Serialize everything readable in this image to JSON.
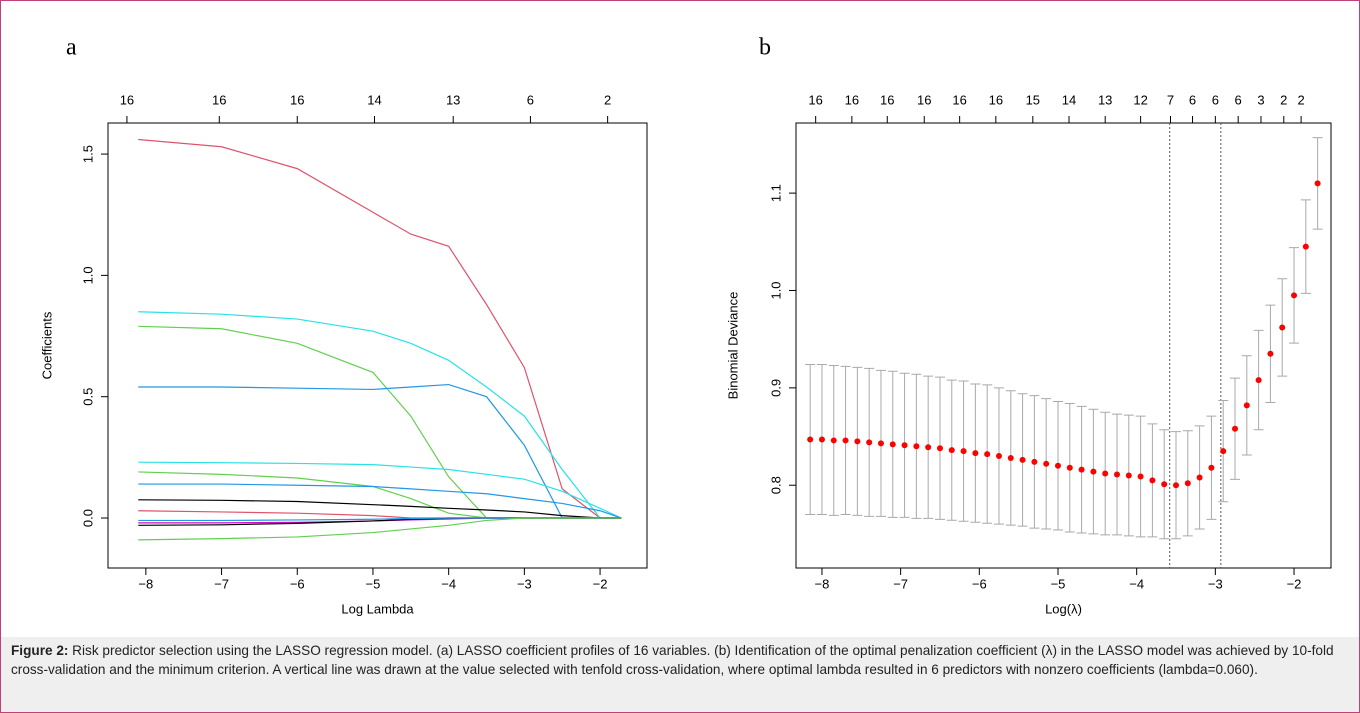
{
  "chart_data": [
    {
      "type": "line",
      "panel_label": "a",
      "x_label": "Log Lambda",
      "y_label": "Coefficients",
      "xlim": [
        -8.5,
        -1.38
      ],
      "ylim": [
        -0.206,
        1.628
      ],
      "xticks": [
        {
          "value": -8,
          "label": "−8"
        },
        {
          "value": -7,
          "label": "−7"
        },
        {
          "value": -6,
          "label": "−6"
        },
        {
          "value": -5,
          "label": "−5"
        },
        {
          "value": -4,
          "label": "−4"
        },
        {
          "value": -3,
          "label": "−3"
        },
        {
          "value": -2,
          "label": "−2"
        }
      ],
      "yticks": [
        {
          "value": 0,
          "label": "0.0"
        },
        0.5,
        {
          "value": 1,
          "label": "1.0"
        },
        1.5
      ],
      "top_ticks": [
        {
          "value": -8.25,
          "label": "16"
        },
        {
          "value": -7.03,
          "label": "16"
        },
        {
          "value": -6.0,
          "label": "16"
        },
        {
          "value": -4.98,
          "label": "14"
        },
        {
          "value": -3.94,
          "label": "13"
        },
        {
          "value": -2.92,
          "label": "6"
        },
        {
          "value": -1.9,
          "label": "2"
        }
      ],
      "x": [
        -8.1,
        -7,
        -6,
        -5,
        -4.5,
        -4,
        -3.5,
        -3,
        -2.5,
        -2,
        -1.72
      ],
      "series": [
        {
          "color": "#DF536B",
          "values": [
            1.56,
            1.53,
            1.44,
            1.26,
            1.17,
            1.12,
            0.88,
            0.62,
            0.12,
            0,
            0
          ]
        },
        {
          "color": "#28E2E5",
          "values": [
            0.85,
            0.84,
            0.82,
            0.77,
            0.72,
            0.65,
            0.54,
            0.42,
            0.2,
            0,
            0
          ]
        },
        {
          "color": "#61D04F",
          "values": [
            0.79,
            0.78,
            0.72,
            0.6,
            0.42,
            0.17,
            0,
            0,
            0,
            0,
            0
          ]
        },
        {
          "color": "#2297E6",
          "values": [
            0.54,
            0.54,
            0.535,
            0.53,
            0.54,
            0.55,
            0.5,
            0.3,
            0,
            0,
            0
          ]
        },
        {
          "color": "#28E2E5",
          "values": [
            0.23,
            0.228,
            0.225,
            0.22,
            0.21,
            0.2,
            0.18,
            0.16,
            0.11,
            0.04,
            0
          ]
        },
        {
          "color": "#61D04F",
          "values": [
            0.19,
            0.18,
            0.165,
            0.13,
            0.08,
            0.02,
            0,
            0,
            0,
            0,
            0
          ]
        },
        {
          "color": "#2297E6",
          "values": [
            0.14,
            0.14,
            0.135,
            0.13,
            0.12,
            0.11,
            0.1,
            0.08,
            0.06,
            0.03,
            0
          ]
        },
        {
          "color": "#000000",
          "values": [
            0.075,
            0.073,
            0.068,
            0.055,
            0.048,
            0.04,
            0.033,
            0.025,
            0.01,
            0,
            0
          ]
        },
        {
          "color": "#DF536B",
          "values": [
            0.03,
            0.025,
            0.02,
            0.01,
            0,
            0,
            0,
            0,
            0,
            0,
            0
          ]
        },
        {
          "color": "#CD0BBC",
          "values": [
            -0.02,
            -0.02,
            -0.018,
            -0.012,
            -0.008,
            -0.004,
            0,
            0,
            0,
            0,
            0
          ]
        },
        {
          "color": "#000000",
          "values": [
            -0.03,
            -0.028,
            -0.022,
            -0.012,
            -0.005,
            0,
            0,
            0,
            0,
            0,
            0
          ]
        },
        {
          "color": "#2297E6",
          "values": [
            -0.01,
            -0.01,
            -0.008,
            -0.005,
            -0.002,
            0,
            0,
            0,
            0,
            0,
            0
          ]
        },
        {
          "color": "#61D04F",
          "values": [
            -0.09,
            -0.085,
            -0.078,
            -0.06,
            -0.045,
            -0.03,
            -0.01,
            0,
            0,
            0,
            0
          ]
        }
      ]
    },
    {
      "type": "errorbar",
      "panel_label": "b",
      "x_label": "Log(λ)",
      "y_label": "Binomial Deviance",
      "xlim": [
        -8.33,
        -1.53
      ],
      "ylim": [
        0.715,
        1.172
      ],
      "xticks": [
        {
          "value": -8,
          "label": "−8"
        },
        {
          "value": -7,
          "label": "−7"
        },
        {
          "value": -6,
          "label": "−6"
        },
        {
          "value": -5,
          "label": "−5"
        },
        {
          "value": -4,
          "label": "−4"
        },
        {
          "value": -3,
          "label": "−3"
        },
        {
          "value": -2,
          "label": "−2"
        }
      ],
      "yticks": [
        0.8,
        0.9,
        {
          "value": 1,
          "label": "1.0"
        },
        1.1
      ],
      "top_ticks": [
        {
          "value": -8.08,
          "label": "16"
        },
        {
          "value": -7.62,
          "label": "16"
        },
        {
          "value": -7.17,
          "label": "16"
        },
        {
          "value": -6.7,
          "label": "16"
        },
        {
          "value": -6.25,
          "label": "16"
        },
        {
          "value": -5.79,
          "label": "16"
        },
        {
          "value": -5.32,
          "label": "15"
        },
        {
          "value": -4.86,
          "label": "14"
        },
        {
          "value": -4.4,
          "label": "13"
        },
        {
          "value": -3.95,
          "label": "12"
        },
        {
          "value": -3.57,
          "label": "7"
        },
        {
          "value": -3.29,
          "label": "6"
        },
        {
          "value": -3.0,
          "label": "6"
        },
        {
          "value": -2.71,
          "label": "6"
        },
        {
          "value": -2.42,
          "label": "3"
        },
        {
          "value": -2.13,
          "label": "2"
        },
        {
          "value": -1.91,
          "label": "2"
        }
      ],
      "vlines": [
        -3.58,
        -2.93
      ],
      "color": "#FF0000",
      "error_color": "#A9A9A9",
      "x": [
        -8.15,
        -8.0,
        -7.85,
        -7.7,
        -7.55,
        -7.4,
        -7.25,
        -7.1,
        -6.95,
        -6.8,
        -6.65,
        -6.5,
        -6.35,
        -6.2,
        -6.05,
        -5.9,
        -5.75,
        -5.6,
        -5.45,
        -5.3,
        -5.15,
        -5.0,
        -4.85,
        -4.7,
        -4.55,
        -4.4,
        -4.25,
        -4.1,
        -3.95,
        -3.8,
        -3.65,
        -3.5,
        -3.35,
        -3.2,
        -3.05,
        -2.9,
        -2.75,
        -2.6,
        -2.45,
        -2.3,
        -2.15,
        -2.0,
        -1.85,
        -1.7
      ],
      "values": [
        0.847,
        0.847,
        0.846,
        0.846,
        0.845,
        0.844,
        0.843,
        0.842,
        0.841,
        0.84,
        0.839,
        0.838,
        0.836,
        0.835,
        0.833,
        0.832,
        0.83,
        0.828,
        0.826,
        0.824,
        0.822,
        0.82,
        0.818,
        0.816,
        0.814,
        0.812,
        0.811,
        0.81,
        0.809,
        0.805,
        0.801,
        0.8,
        0.802,
        0.808,
        0.818,
        0.835,
        0.858,
        0.882,
        0.908,
        0.935,
        0.962,
        0.995,
        1.045,
        1.11
      ],
      "errors": [
        0.077,
        0.077,
        0.077,
        0.076,
        0.076,
        0.076,
        0.075,
        0.075,
        0.074,
        0.074,
        0.073,
        0.073,
        0.072,
        0.072,
        0.071,
        0.071,
        0.07,
        0.069,
        0.068,
        0.068,
        0.067,
        0.066,
        0.066,
        0.065,
        0.064,
        0.063,
        0.062,
        0.062,
        0.062,
        0.058,
        0.056,
        0.055,
        0.054,
        0.053,
        0.053,
        0.052,
        0.052,
        0.051,
        0.051,
        0.05,
        0.05,
        0.049,
        0.048,
        0.047
      ]
    }
  ],
  "caption": {
    "label": "Figure 2:",
    "text": " Risk predictor selection using the LASSO regression model. (a) LASSO coefficient profiles of 16 variables. (b) Identification of the optimal penalization coefficient (λ) in the LASSO model was achieved by 10-fold cross-validation and the minimum criterion. A vertical line was drawn at the value selected with tenfold cross-validation, where optimal lambda resulted in 6 predictors with nonzero coefficients (lambda=0.060)."
  }
}
